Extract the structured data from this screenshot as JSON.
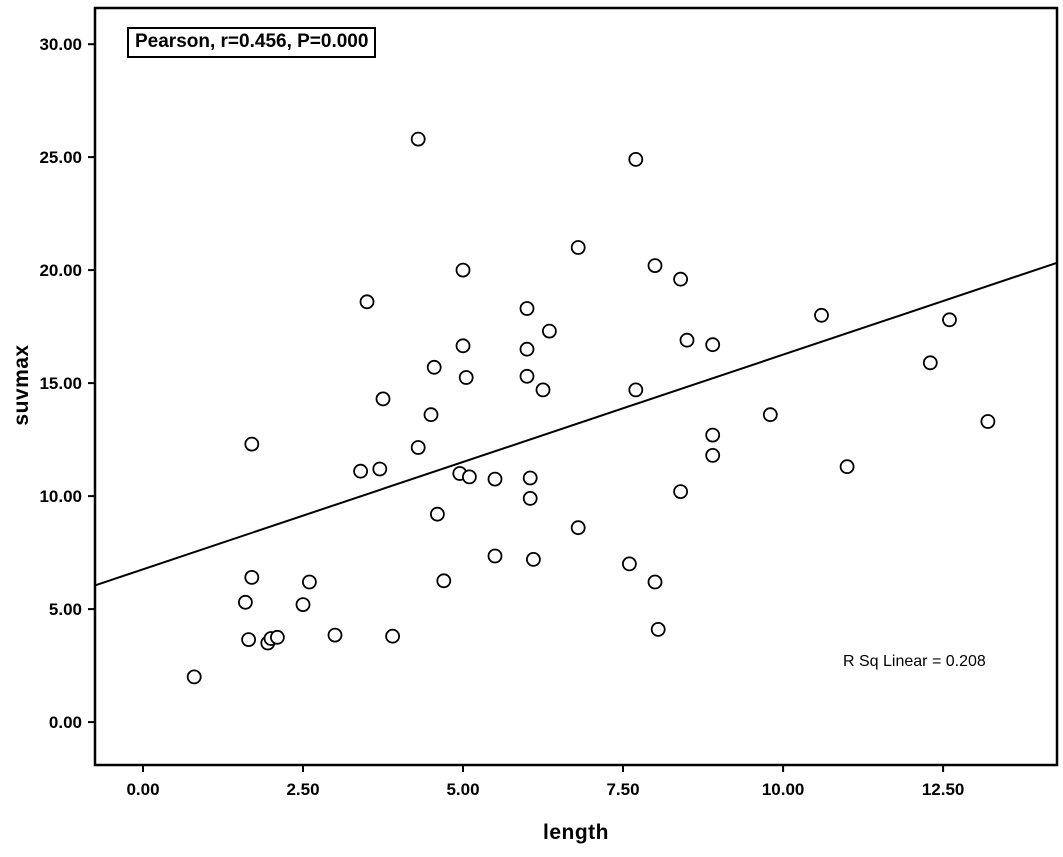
{
  "chart_data": {
    "type": "scatter",
    "title": "",
    "xlabel": "length",
    "ylabel": "suvmax",
    "xlim": [
      -0.75,
      14.28
    ],
    "ylim": [
      -1.9,
      31.6
    ],
    "x_ticks": [
      0,
      2.5,
      5,
      7.5,
      10,
      12.5
    ],
    "x_tick_labels": [
      "0.00",
      "2.50",
      "5.00",
      "7.50",
      "10.00",
      "12.50"
    ],
    "y_ticks": [
      0,
      5,
      10,
      15,
      20,
      25,
      30
    ],
    "y_tick_labels": [
      "0.00",
      "5.00",
      "10.00",
      "15.00",
      "20.00",
      "25.00",
      "30.00"
    ],
    "grid": false,
    "legend": null,
    "marker": {
      "shape": "circle-open",
      "radius": 6.5,
      "color": "#000000",
      "fill": "#ffffff"
    },
    "fit_line": {
      "slope": 0.95,
      "intercept": 6.76,
      "x_start": -0.75,
      "x_end": 14.28
    },
    "annotations": [
      {
        "id": "pearson",
        "text": "Pearson, r=0.456, P=0.000",
        "boxed": true,
        "position": "top-left"
      },
      {
        "id": "rsq",
        "text": "R Sq Linear = 0.208",
        "boxed": false,
        "position": "bottom-right"
      }
    ],
    "points": [
      [
        0.8,
        2.0
      ],
      [
        1.6,
        5.3
      ],
      [
        1.65,
        3.65
      ],
      [
        1.7,
        6.4
      ],
      [
        1.7,
        12.3
      ],
      [
        1.95,
        3.5
      ],
      [
        2.0,
        3.7
      ],
      [
        2.1,
        3.75
      ],
      [
        2.5,
        5.2
      ],
      [
        2.6,
        6.2
      ],
      [
        3.0,
        3.85
      ],
      [
        3.4,
        11.1
      ],
      [
        3.5,
        18.6
      ],
      [
        3.7,
        11.2
      ],
      [
        3.75,
        14.3
      ],
      [
        3.9,
        3.8
      ],
      [
        4.3,
        25.8
      ],
      [
        4.3,
        12.15
      ],
      [
        4.5,
        13.6
      ],
      [
        4.55,
        15.7
      ],
      [
        4.6,
        9.2
      ],
      [
        4.7,
        6.25
      ],
      [
        5.0,
        20.0
      ],
      [
        5.0,
        16.65
      ],
      [
        5.05,
        15.25
      ],
      [
        4.95,
        11.0
      ],
      [
        5.1,
        10.85
      ],
      [
        5.5,
        10.75
      ],
      [
        5.5,
        7.35
      ],
      [
        6.0,
        18.3
      ],
      [
        6.0,
        16.5
      ],
      [
        6.0,
        15.3
      ],
      [
        6.05,
        10.8
      ],
      [
        6.05,
        9.9
      ],
      [
        6.1,
        7.2
      ],
      [
        6.25,
        14.7
      ],
      [
        6.35,
        17.3
      ],
      [
        6.8,
        21.0
      ],
      [
        6.8,
        8.6
      ],
      [
        7.7,
        24.9
      ],
      [
        7.7,
        14.7
      ],
      [
        7.6,
        7.0
      ],
      [
        8.0,
        20.2
      ],
      [
        8.0,
        6.2
      ],
      [
        8.05,
        4.1
      ],
      [
        8.4,
        19.6
      ],
      [
        8.5,
        16.9
      ],
      [
        8.4,
        10.2
      ],
      [
        8.9,
        16.7
      ],
      [
        8.9,
        12.7
      ],
      [
        8.9,
        11.8
      ],
      [
        9.8,
        13.6
      ],
      [
        10.6,
        18.0
      ],
      [
        11.0,
        11.3
      ],
      [
        12.3,
        15.9
      ],
      [
        12.6,
        17.8
      ],
      [
        13.2,
        13.3
      ]
    ]
  }
}
